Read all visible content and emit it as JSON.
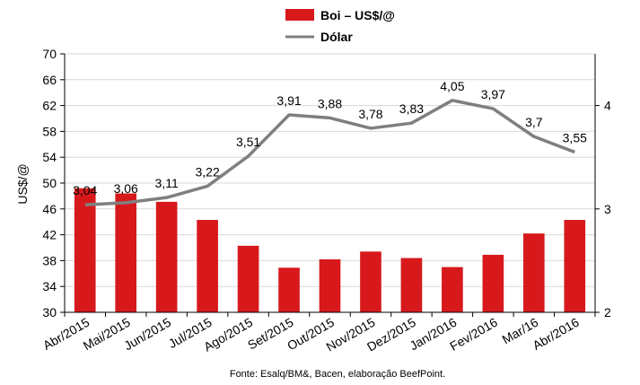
{
  "chart_data": {
    "type": "bar",
    "categories": [
      "Abr/2015",
      "Mai/2015",
      "Jun/2015",
      "Jul/2015",
      "Ago/2015",
      "Set/2015",
      "Out/2015",
      "Nov/2015",
      "Dez/2015",
      "Jan/2016",
      "Fev/2016",
      "Mar/16",
      "Abr/2016"
    ],
    "series": [
      {
        "name": "Boi – US$/@",
        "type": "bar",
        "axis": "left",
        "color": "#d7191c",
        "values": [
          49.2,
          48.4,
          47.1,
          44.3,
          40.3,
          36.9,
          38.2,
          39.4,
          38.4,
          37.0,
          38.9,
          42.2,
          44.3
        ]
      },
      {
        "name": "Dólar",
        "type": "line",
        "axis": "right",
        "color": "#7f7f7f",
        "values": [
          3.04,
          3.06,
          3.11,
          3.22,
          3.51,
          3.91,
          3.88,
          3.78,
          3.83,
          4.05,
          3.97,
          3.7,
          3.55
        ],
        "labels": [
          "3,04",
          "3,06",
          "3,11",
          "3,22",
          "3,51",
          "3,91",
          "3,88",
          "3,78",
          "3,83",
          "4,05",
          "3,97",
          "3,7",
          "3,55"
        ]
      }
    ],
    "ylabel": "US$/@",
    "ylim": [
      30,
      70
    ],
    "yticks": [
      30,
      34,
      38,
      42,
      46,
      50,
      54,
      58,
      62,
      66,
      70
    ],
    "y2lim": [
      2,
      4.5
    ],
    "y2ticks": [
      2,
      3,
      4
    ],
    "grid": true,
    "legend": "top-center",
    "source": "Fonte: Esalq/BM&, Bacen, elaboração BeefPoint."
  }
}
